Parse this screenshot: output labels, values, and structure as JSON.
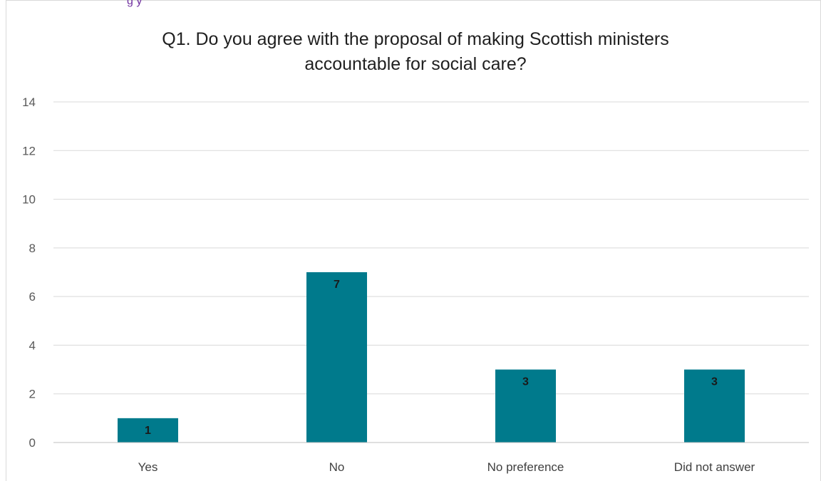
{
  "caption_fragment": "g                                      y",
  "chart_data": {
    "type": "bar",
    "title_lines": [
      "Q1. Do you agree with the proposal of making Scottish ministers",
      "accountable for social care?"
    ],
    "categories": [
      "Yes",
      "No",
      "No preference",
      "Did not answer"
    ],
    "values": [
      1,
      7,
      3,
      3
    ],
    "ylim": [
      0,
      14
    ],
    "y_ticks": [
      "0",
      "2",
      "4",
      "6",
      "8",
      "10",
      "12",
      "14"
    ],
    "grid": true,
    "legend": "none",
    "bar_color": "#007a8c"
  }
}
